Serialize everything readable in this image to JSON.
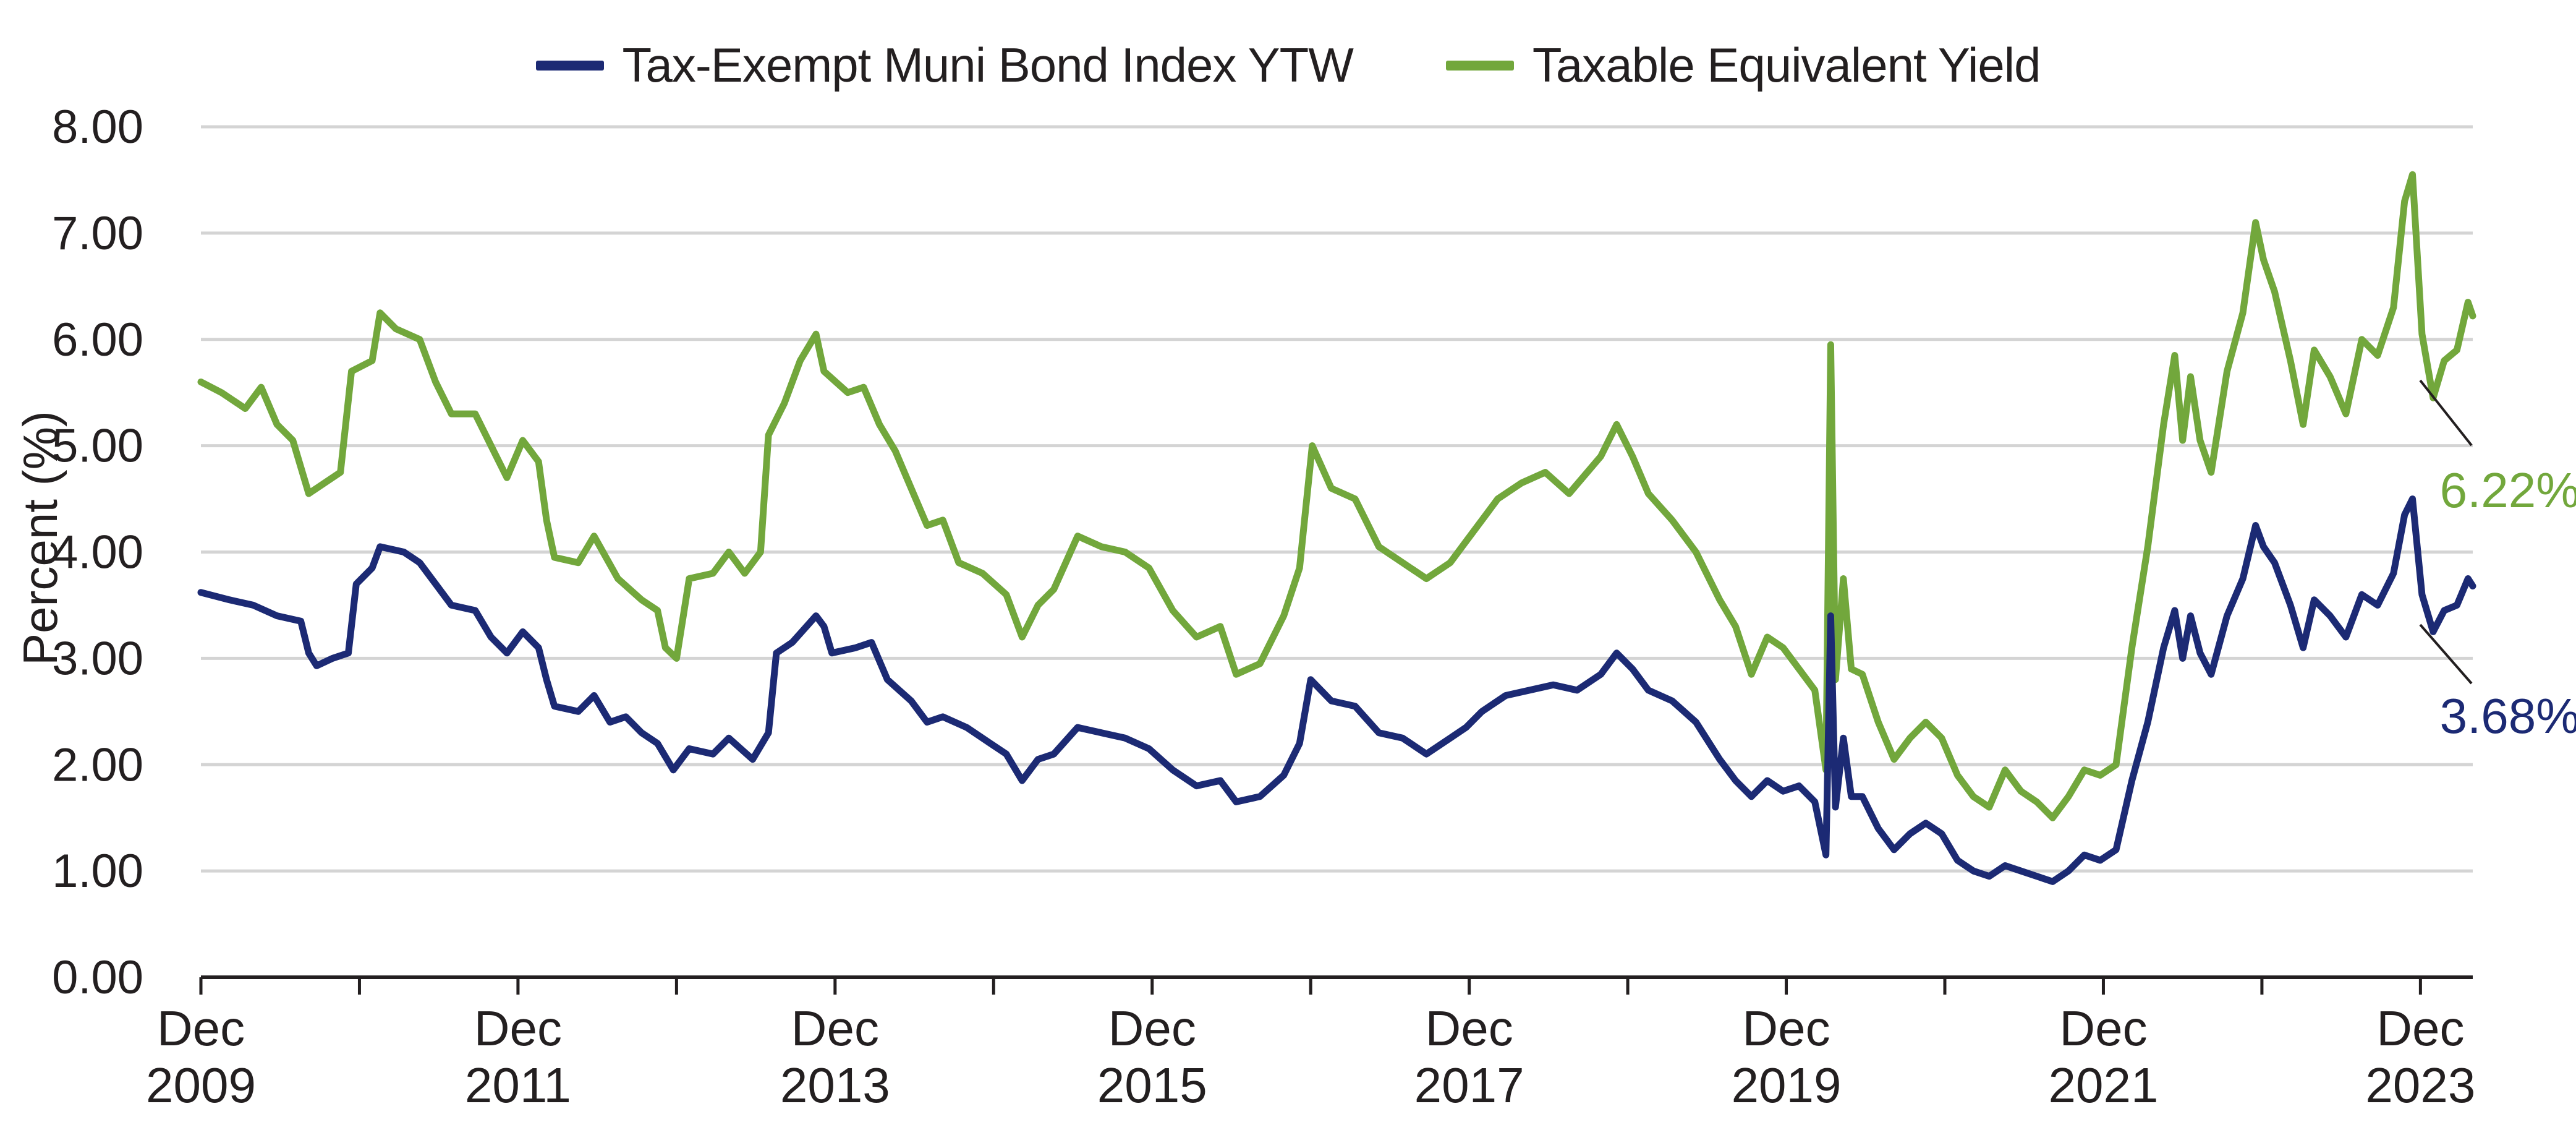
{
  "chart_data": {
    "type": "line",
    "title": "",
    "ylabel": "Percent (%)",
    "xlabel": "",
    "ylim": [
      0,
      8
    ],
    "y_ticks": [
      "0.00",
      "1.00",
      "2.00",
      "3.00",
      "4.00",
      "5.00",
      "6.00",
      "7.00",
      "8.00"
    ],
    "x_range": [
      2009.92,
      2024.25
    ],
    "x_ticks": [
      {
        "line1": "Dec",
        "line2": "2009",
        "t": 2009.92
      },
      {
        "line1": "Dec",
        "line2": "2011",
        "t": 2011.92
      },
      {
        "line1": "Dec",
        "line2": "2013",
        "t": 2013.92
      },
      {
        "line1": "Dec",
        "line2": "2015",
        "t": 2015.92
      },
      {
        "line1": "Dec",
        "line2": "2017",
        "t": 2017.92
      },
      {
        "line1": "Dec",
        "line2": "2019",
        "t": 2019.92
      },
      {
        "line1": "Dec",
        "line2": "2021",
        "t": 2021.92
      },
      {
        "line1": "Dec",
        "line2": "2023",
        "t": 2023.92
      }
    ],
    "grid": true,
    "legend_position": "top-center",
    "series": [
      {
        "name": "Tax-Exempt Muni Bond Index YTW",
        "color": "#1c2a74",
        "end_label": "3.68%",
        "points": [
          [
            2009.92,
            3.62
          ],
          [
            2010.1,
            3.55
          ],
          [
            2010.25,
            3.5
          ],
          [
            2010.4,
            3.4
          ],
          [
            2010.55,
            3.35
          ],
          [
            2010.6,
            3.05
          ],
          [
            2010.65,
            2.93
          ],
          [
            2010.75,
            3.0
          ],
          [
            2010.85,
            3.05
          ],
          [
            2010.9,
            3.7
          ],
          [
            2011.0,
            3.85
          ],
          [
            2011.05,
            4.05
          ],
          [
            2011.2,
            4.0
          ],
          [
            2011.3,
            3.9
          ],
          [
            2011.4,
            3.7
          ],
          [
            2011.5,
            3.5
          ],
          [
            2011.65,
            3.45
          ],
          [
            2011.75,
            3.2
          ],
          [
            2011.85,
            3.05
          ],
          [
            2011.95,
            3.25
          ],
          [
            2012.05,
            3.1
          ],
          [
            2012.1,
            2.8
          ],
          [
            2012.15,
            2.55
          ],
          [
            2012.3,
            2.5
          ],
          [
            2012.4,
            2.65
          ],
          [
            2012.5,
            2.4
          ],
          [
            2012.6,
            2.45
          ],
          [
            2012.7,
            2.3
          ],
          [
            2012.8,
            2.2
          ],
          [
            2012.9,
            1.95
          ],
          [
            2013.0,
            2.15
          ],
          [
            2013.15,
            2.1
          ],
          [
            2013.25,
            2.25
          ],
          [
            2013.4,
            2.05
          ],
          [
            2013.5,
            2.3
          ],
          [
            2013.55,
            3.05
          ],
          [
            2013.65,
            3.15
          ],
          [
            2013.8,
            3.4
          ],
          [
            2013.85,
            3.3
          ],
          [
            2013.9,
            3.05
          ],
          [
            2014.05,
            3.1
          ],
          [
            2014.15,
            3.15
          ],
          [
            2014.25,
            2.8
          ],
          [
            2014.4,
            2.6
          ],
          [
            2014.5,
            2.4
          ],
          [
            2014.6,
            2.45
          ],
          [
            2014.75,
            2.35
          ],
          [
            2014.9,
            2.2
          ],
          [
            2015.0,
            2.1
          ],
          [
            2015.1,
            1.85
          ],
          [
            2015.2,
            2.05
          ],
          [
            2015.3,
            2.1
          ],
          [
            2015.45,
            2.35
          ],
          [
            2015.6,
            2.3
          ],
          [
            2015.75,
            2.25
          ],
          [
            2015.9,
            2.15
          ],
          [
            2016.05,
            1.95
          ],
          [
            2016.2,
            1.8
          ],
          [
            2016.35,
            1.85
          ],
          [
            2016.45,
            1.65
          ],
          [
            2016.6,
            1.7
          ],
          [
            2016.75,
            1.9
          ],
          [
            2016.85,
            2.2
          ],
          [
            2016.92,
            2.8
          ],
          [
            2017.05,
            2.6
          ],
          [
            2017.2,
            2.55
          ],
          [
            2017.35,
            2.3
          ],
          [
            2017.5,
            2.25
          ],
          [
            2017.65,
            2.1
          ],
          [
            2017.8,
            2.25
          ],
          [
            2017.9,
            2.35
          ],
          [
            2018.0,
            2.5
          ],
          [
            2018.15,
            2.65
          ],
          [
            2018.3,
            2.7
          ],
          [
            2018.45,
            2.75
          ],
          [
            2018.6,
            2.7
          ],
          [
            2018.75,
            2.85
          ],
          [
            2018.85,
            3.05
          ],
          [
            2018.95,
            2.9
          ],
          [
            2019.05,
            2.7
          ],
          [
            2019.2,
            2.6
          ],
          [
            2019.35,
            2.4
          ],
          [
            2019.5,
            2.05
          ],
          [
            2019.6,
            1.85
          ],
          [
            2019.7,
            1.7
          ],
          [
            2019.8,
            1.85
          ],
          [
            2019.9,
            1.75
          ],
          [
            2020.0,
            1.8
          ],
          [
            2020.1,
            1.65
          ],
          [
            2020.17,
            1.15
          ],
          [
            2020.2,
            3.4
          ],
          [
            2020.23,
            1.6
          ],
          [
            2020.28,
            2.25
          ],
          [
            2020.33,
            1.7
          ],
          [
            2020.4,
            1.7
          ],
          [
            2020.5,
            1.4
          ],
          [
            2020.6,
            1.2
          ],
          [
            2020.7,
            1.35
          ],
          [
            2020.8,
            1.45
          ],
          [
            2020.9,
            1.35
          ],
          [
            2021.0,
            1.1
          ],
          [
            2021.1,
            1.0
          ],
          [
            2021.2,
            0.95
          ],
          [
            2021.3,
            1.05
          ],
          [
            2021.4,
            1.0
          ],
          [
            2021.5,
            0.95
          ],
          [
            2021.6,
            0.9
          ],
          [
            2021.7,
            1.0
          ],
          [
            2021.8,
            1.15
          ],
          [
            2021.9,
            1.1
          ],
          [
            2022.0,
            1.2
          ],
          [
            2022.1,
            1.85
          ],
          [
            2022.2,
            2.4
          ],
          [
            2022.3,
            3.1
          ],
          [
            2022.37,
            3.45
          ],
          [
            2022.42,
            3.0
          ],
          [
            2022.47,
            3.4
          ],
          [
            2022.53,
            3.05
          ],
          [
            2022.6,
            2.85
          ],
          [
            2022.7,
            3.4
          ],
          [
            2022.8,
            3.75
          ],
          [
            2022.88,
            4.25
          ],
          [
            2022.93,
            4.05
          ],
          [
            2023.0,
            3.9
          ],
          [
            2023.1,
            3.5
          ],
          [
            2023.18,
            3.1
          ],
          [
            2023.25,
            3.55
          ],
          [
            2023.35,
            3.4
          ],
          [
            2023.45,
            3.2
          ],
          [
            2023.55,
            3.6
          ],
          [
            2023.65,
            3.5
          ],
          [
            2023.75,
            3.8
          ],
          [
            2023.82,
            4.35
          ],
          [
            2023.87,
            4.5
          ],
          [
            2023.93,
            3.6
          ],
          [
            2024.0,
            3.25
          ],
          [
            2024.07,
            3.45
          ],
          [
            2024.15,
            3.5
          ],
          [
            2024.22,
            3.75
          ],
          [
            2024.25,
            3.68
          ]
        ]
      },
      {
        "name": "Taxable Equivalent Yield",
        "color": "#72a73c",
        "end_label": "6.22%",
        "points": [
          [
            2009.92,
            5.6
          ],
          [
            2010.05,
            5.5
          ],
          [
            2010.2,
            5.35
          ],
          [
            2010.3,
            5.55
          ],
          [
            2010.4,
            5.2
          ],
          [
            2010.5,
            5.05
          ],
          [
            2010.6,
            4.55
          ],
          [
            2010.7,
            4.65
          ],
          [
            2010.8,
            4.75
          ],
          [
            2010.87,
            5.7
          ],
          [
            2011.0,
            5.8
          ],
          [
            2011.05,
            6.25
          ],
          [
            2011.15,
            6.1
          ],
          [
            2011.3,
            6.0
          ],
          [
            2011.4,
            5.6
          ],
          [
            2011.5,
            5.3
          ],
          [
            2011.65,
            5.3
          ],
          [
            2011.75,
            5.0
          ],
          [
            2011.85,
            4.7
          ],
          [
            2011.95,
            5.05
          ],
          [
            2012.05,
            4.85
          ],
          [
            2012.1,
            4.3
          ],
          [
            2012.15,
            3.95
          ],
          [
            2012.3,
            3.9
          ],
          [
            2012.4,
            4.15
          ],
          [
            2012.55,
            3.75
          ],
          [
            2012.7,
            3.55
          ],
          [
            2012.8,
            3.45
          ],
          [
            2012.85,
            3.1
          ],
          [
            2012.92,
            3.0
          ],
          [
            2013.0,
            3.75
          ],
          [
            2013.15,
            3.8
          ],
          [
            2013.25,
            4.0
          ],
          [
            2013.35,
            3.8
          ],
          [
            2013.45,
            4.0
          ],
          [
            2013.5,
            5.1
          ],
          [
            2013.6,
            5.4
          ],
          [
            2013.7,
            5.8
          ],
          [
            2013.8,
            6.05
          ],
          [
            2013.85,
            5.7
          ],
          [
            2014.0,
            5.5
          ],
          [
            2014.1,
            5.55
          ],
          [
            2014.2,
            5.2
          ],
          [
            2014.3,
            4.95
          ],
          [
            2014.4,
            4.6
          ],
          [
            2014.5,
            4.25
          ],
          [
            2014.6,
            4.3
          ],
          [
            2014.7,
            3.9
          ],
          [
            2014.85,
            3.8
          ],
          [
            2015.0,
            3.6
          ],
          [
            2015.1,
            3.2
          ],
          [
            2015.2,
            3.5
          ],
          [
            2015.3,
            3.65
          ],
          [
            2015.45,
            4.15
          ],
          [
            2015.6,
            4.05
          ],
          [
            2015.75,
            4.0
          ],
          [
            2015.9,
            3.85
          ],
          [
            2016.05,
            3.45
          ],
          [
            2016.2,
            3.2
          ],
          [
            2016.35,
            3.3
          ],
          [
            2016.45,
            2.85
          ],
          [
            2016.6,
            2.95
          ],
          [
            2016.75,
            3.4
          ],
          [
            2016.85,
            3.85
          ],
          [
            2016.93,
            5.0
          ],
          [
            2017.05,
            4.6
          ],
          [
            2017.2,
            4.5
          ],
          [
            2017.35,
            4.05
          ],
          [
            2017.5,
            3.9
          ],
          [
            2017.65,
            3.75
          ],
          [
            2017.8,
            3.9
          ],
          [
            2017.9,
            4.1
          ],
          [
            2018.0,
            4.3
          ],
          [
            2018.1,
            4.5
          ],
          [
            2018.25,
            4.65
          ],
          [
            2018.4,
            4.75
          ],
          [
            2018.55,
            4.55
          ],
          [
            2018.75,
            4.9
          ],
          [
            2018.85,
            5.2
          ],
          [
            2018.95,
            4.9
          ],
          [
            2019.05,
            4.55
          ],
          [
            2019.2,
            4.3
          ],
          [
            2019.35,
            4.0
          ],
          [
            2019.5,
            3.55
          ],
          [
            2019.6,
            3.3
          ],
          [
            2019.7,
            2.85
          ],
          [
            2019.8,
            3.2
          ],
          [
            2019.9,
            3.1
          ],
          [
            2020.0,
            2.9
          ],
          [
            2020.1,
            2.7
          ],
          [
            2020.17,
            1.95
          ],
          [
            2020.2,
            5.95
          ],
          [
            2020.23,
            2.8
          ],
          [
            2020.28,
            3.75
          ],
          [
            2020.33,
            2.9
          ],
          [
            2020.4,
            2.85
          ],
          [
            2020.5,
            2.4
          ],
          [
            2020.6,
            2.05
          ],
          [
            2020.7,
            2.25
          ],
          [
            2020.8,
            2.4
          ],
          [
            2020.9,
            2.25
          ],
          [
            2021.0,
            1.9
          ],
          [
            2021.1,
            1.7
          ],
          [
            2021.2,
            1.6
          ],
          [
            2021.3,
            1.95
          ],
          [
            2021.4,
            1.75
          ],
          [
            2021.5,
            1.65
          ],
          [
            2021.6,
            1.5
          ],
          [
            2021.7,
            1.7
          ],
          [
            2021.8,
            1.95
          ],
          [
            2021.9,
            1.9
          ],
          [
            2022.0,
            2.0
          ],
          [
            2022.1,
            3.1
          ],
          [
            2022.2,
            4.05
          ],
          [
            2022.3,
            5.2
          ],
          [
            2022.37,
            5.85
          ],
          [
            2022.42,
            5.05
          ],
          [
            2022.47,
            5.65
          ],
          [
            2022.53,
            5.05
          ],
          [
            2022.6,
            4.75
          ],
          [
            2022.7,
            5.7
          ],
          [
            2022.8,
            6.25
          ],
          [
            2022.88,
            7.1
          ],
          [
            2022.93,
            6.75
          ],
          [
            2023.0,
            6.45
          ],
          [
            2023.1,
            5.8
          ],
          [
            2023.18,
            5.2
          ],
          [
            2023.25,
            5.9
          ],
          [
            2023.35,
            5.65
          ],
          [
            2023.45,
            5.3
          ],
          [
            2023.55,
            6.0
          ],
          [
            2023.65,
            5.85
          ],
          [
            2023.75,
            6.3
          ],
          [
            2023.82,
            7.3
          ],
          [
            2023.87,
            7.55
          ],
          [
            2023.93,
            6.05
          ],
          [
            2024.0,
            5.45
          ],
          [
            2024.07,
            5.8
          ],
          [
            2024.15,
            5.9
          ],
          [
            2024.22,
            6.35
          ],
          [
            2024.25,
            6.22
          ]
        ]
      }
    ]
  }
}
